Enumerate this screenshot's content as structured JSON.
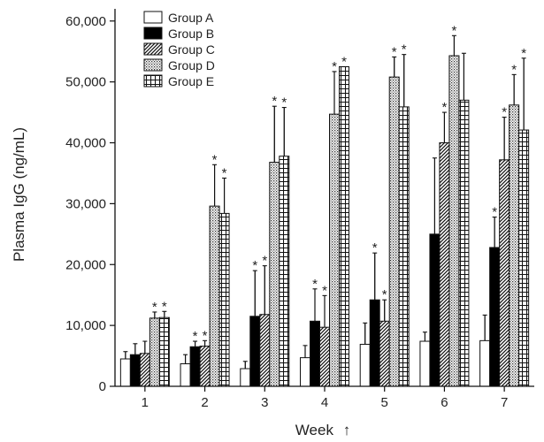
{
  "chart_data": {
    "type": "bar",
    "xlabel": "Week",
    "xlabel_arrow": "↑",
    "ylabel": "Plasma IgG (ng/mL)",
    "ylim": [
      0,
      62000
    ],
    "yticks": [
      0,
      10000,
      20000,
      30000,
      40000,
      50000,
      60000
    ],
    "ytick_labels": [
      "0",
      "10,000",
      "20,000",
      "30,000",
      "40,000",
      "50,000",
      "60,000"
    ],
    "categories": [
      "1",
      "2",
      "3",
      "4",
      "5",
      "6",
      "7"
    ],
    "legend_position": "top-left",
    "significance_marker": "*",
    "series": [
      {
        "name": "Group A",
        "pattern": "white",
        "values": [
          4500,
          3700,
          2900,
          4700,
          6900,
          7400,
          7500
        ],
        "errors": [
          1200,
          1500,
          1200,
          2000,
          3500,
          1500,
          4200
        ],
        "significant": [
          false,
          false,
          false,
          false,
          false,
          false,
          false
        ]
      },
      {
        "name": "Group B",
        "pattern": "black",
        "values": [
          5200,
          6500,
          11500,
          10700,
          14200,
          25000,
          22800
        ],
        "errors": [
          1800,
          900,
          7500,
          5300,
          7700,
          12500,
          5000
        ],
        "significant": [
          false,
          true,
          true,
          true,
          true,
          false,
          true
        ]
      },
      {
        "name": "Group C",
        "pattern": "diagonal",
        "values": [
          5400,
          6600,
          11800,
          9700,
          10700,
          40000,
          37200
        ],
        "errors": [
          2000,
          900,
          8000,
          5200,
          3500,
          5000,
          7000
        ],
        "significant": [
          false,
          true,
          true,
          true,
          true,
          true,
          true
        ]
      },
      {
        "name": "Group D",
        "pattern": "dotted",
        "values": [
          11200,
          29600,
          36800,
          44700,
          50800,
          54300,
          46200
        ],
        "errors": [
          1000,
          6800,
          9200,
          7000,
          3300,
          3300,
          5000
        ],
        "significant": [
          true,
          true,
          true,
          true,
          true,
          true,
          true
        ]
      },
      {
        "name": "Group E",
        "pattern": "grid",
        "values": [
          11300,
          28400,
          37800,
          52500,
          45900,
          47000,
          42100
        ],
        "errors": [
          1000,
          5800,
          8000,
          0,
          8600,
          7700,
          11800
        ],
        "significant": [
          true,
          true,
          true,
          true,
          true,
          false,
          true
        ]
      }
    ]
  }
}
